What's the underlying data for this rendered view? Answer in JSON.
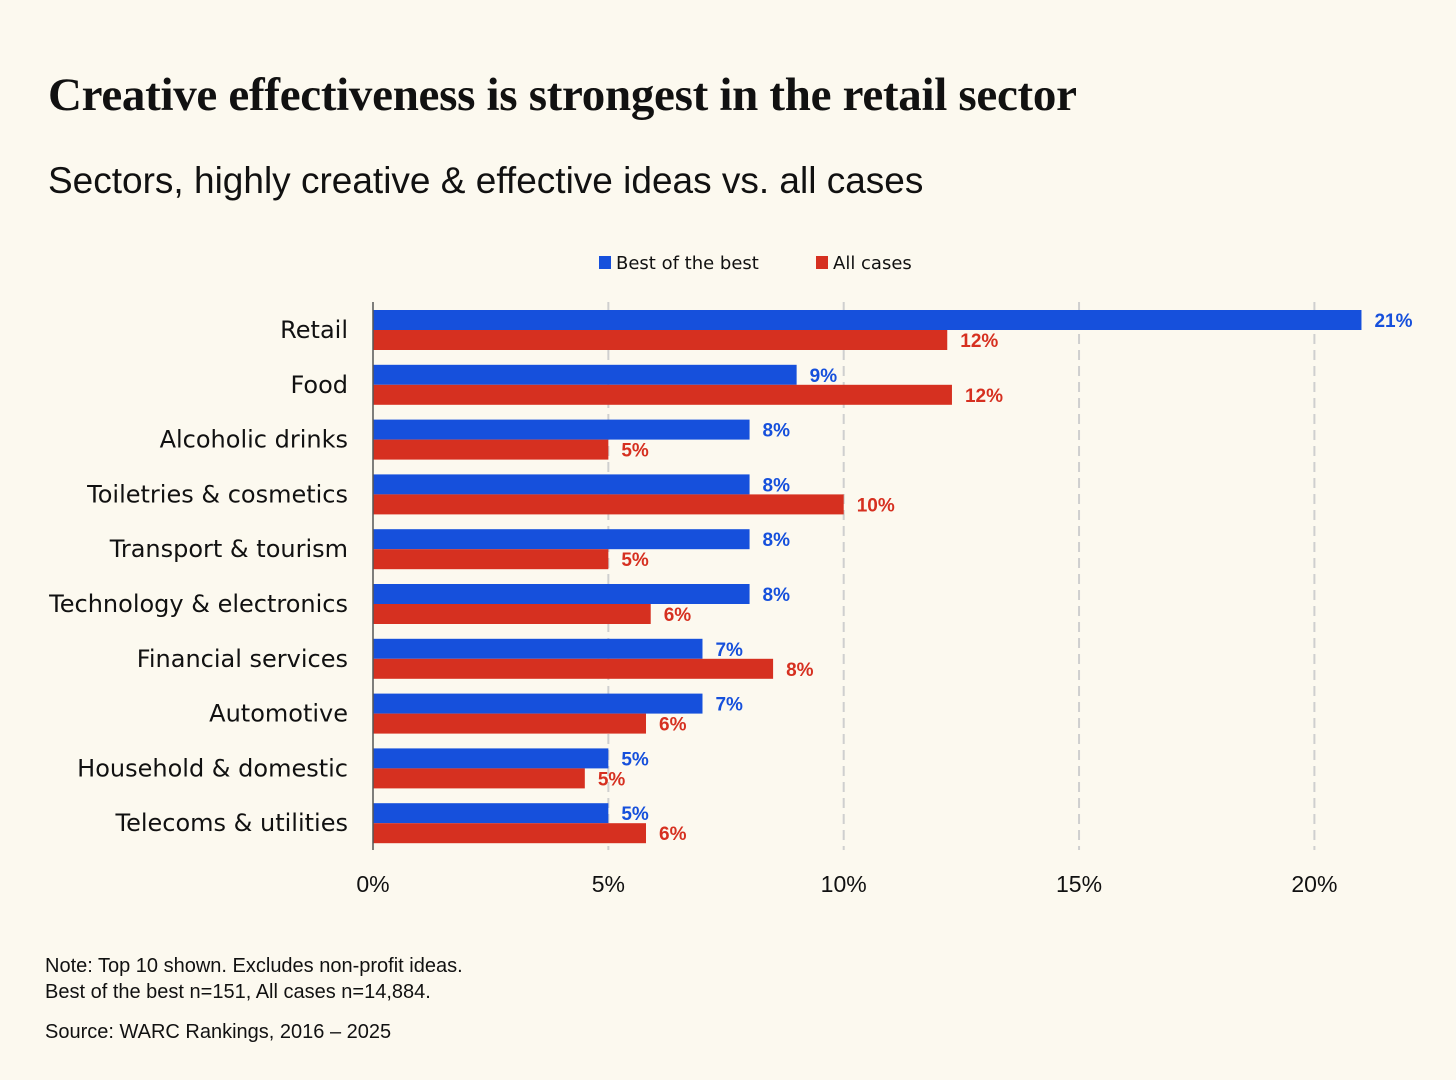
{
  "chart_data": {
    "type": "bar",
    "orientation": "horizontal",
    "title": "Creative effectiveness is strongest in the retail sector",
    "subtitle": "Sectors, highly creative & effective ideas vs. all cases",
    "categories": [
      "Retail",
      "Food",
      "Alcoholic drinks",
      "Toiletries & cosmetics",
      "Transport & tourism",
      "Technology & electronics",
      "Financial services",
      "Automotive",
      "Household & domestic",
      "Telecoms & utilities"
    ],
    "series": [
      {
        "name": "Best of the best",
        "color": "#1650dc",
        "values": [
          21.0,
          9.0,
          8.0,
          8.0,
          8.0,
          8.0,
          7.0,
          7.0,
          5.0,
          5.0
        ],
        "labels": [
          "21%",
          "9%",
          "8%",
          "8%",
          "8%",
          "8%",
          "7%",
          "7%",
          "5%",
          "5%"
        ]
      },
      {
        "name": "All cases",
        "color": "#d63020",
        "values": [
          12.2,
          12.3,
          5.0,
          10.0,
          5.0,
          5.9,
          8.5,
          5.8,
          4.5,
          5.8
        ],
        "labels": [
          "12%",
          "12%",
          "5%",
          "10%",
          "5%",
          "6%",
          "8%",
          "6%",
          "5%",
          "6%"
        ]
      }
    ],
    "xlim": [
      0,
      21
    ],
    "xticks": [
      0,
      5,
      10,
      15,
      20
    ],
    "xtick_labels": [
      "0%",
      "5%",
      "10%",
      "15%",
      "20%"
    ],
    "grid": true,
    "legend_position": "top-center",
    "xlabel": "",
    "ylabel": ""
  },
  "notes": {
    "line1": "Note: Top 10 shown. Excludes non-profit ideas.",
    "line2": "Best of the best n=151, All cases n=14,884.",
    "source": "Source: WARC Rankings, 2016 – 2025"
  }
}
